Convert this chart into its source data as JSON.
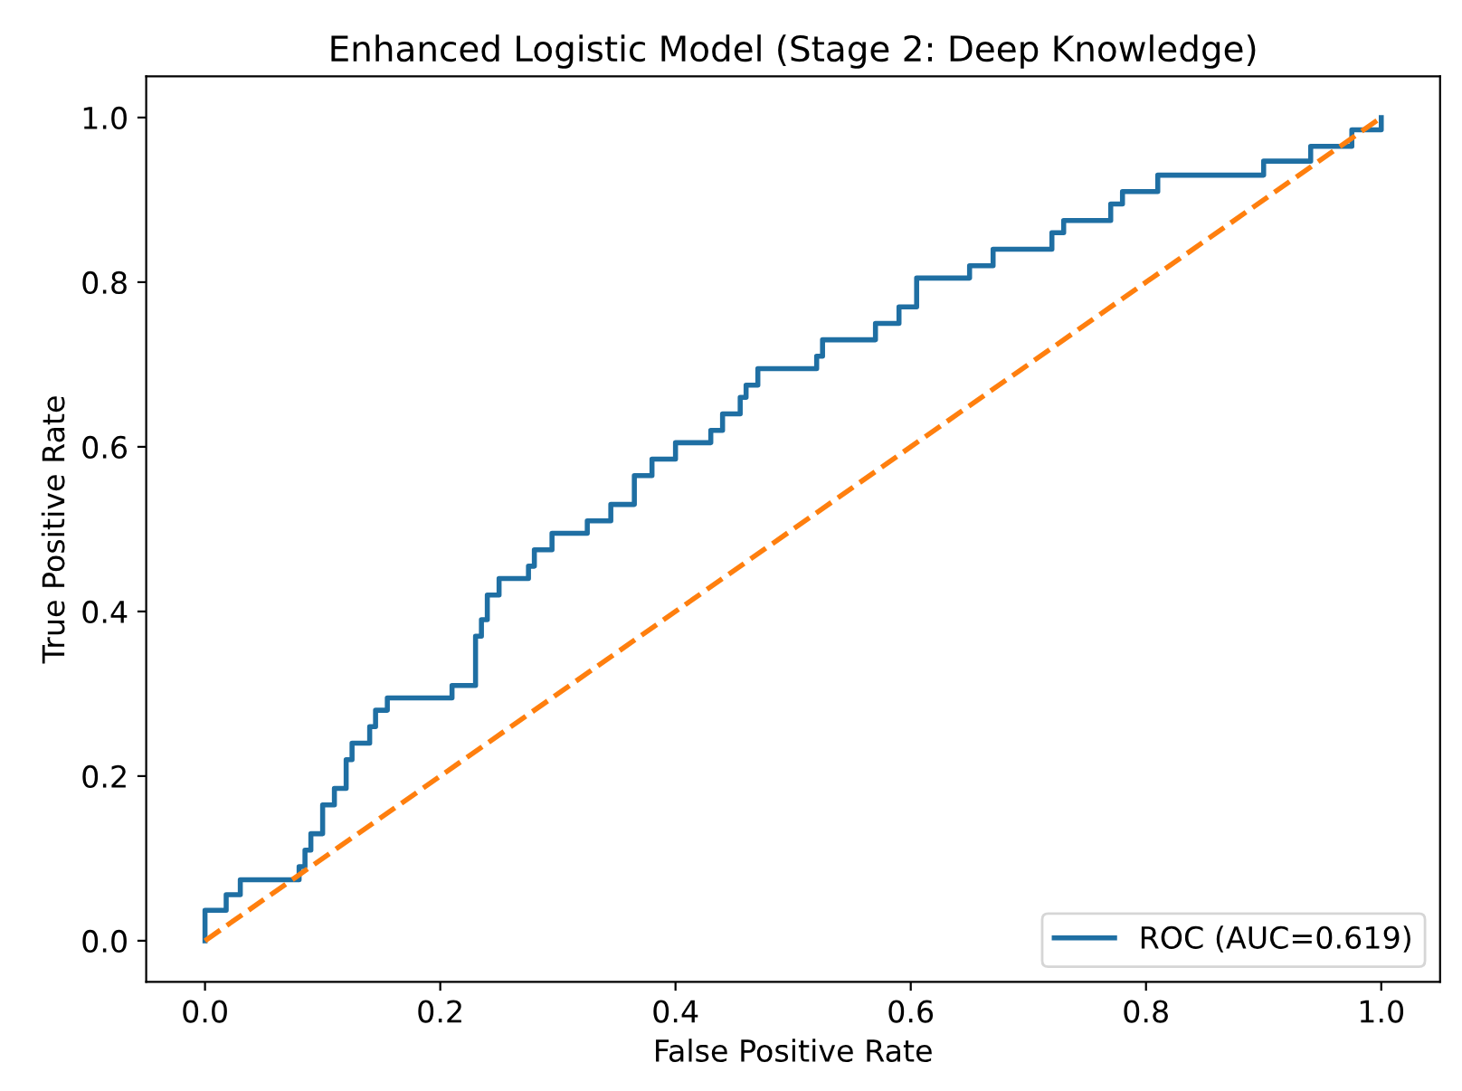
{
  "chart_data": {
    "type": "line",
    "title": "Enhanced Logistic Model (Stage 2: Deep Knowledge)",
    "xlabel": "False Positive Rate",
    "ylabel": "True Positive Rate",
    "xlim": [
      -0.05,
      1.05
    ],
    "ylim": [
      -0.05,
      1.05
    ],
    "xticks": [
      {
        "value": 0,
        "label": "0.0"
      },
      0.2,
      0.4,
      0.6,
      0.8,
      {
        "value": 1,
        "label": "1.0"
      }
    ],
    "yticks": [
      {
        "value": 0,
        "label": "0.0"
      },
      0.2,
      0.4,
      0.6,
      0.8,
      {
        "value": 1,
        "label": "1.0"
      }
    ],
    "grid": false,
    "legend": "bottom right",
    "series": [
      {
        "name": "ROC (AUC=0.619)",
        "type": "step",
        "color": "#1f6fa3",
        "line_style": "solid",
        "x": [
          0,
          0,
          0.018,
          0.03,
          0.08,
          0.085,
          0.09,
          0.1,
          0.11,
          0.12,
          0.125,
          0.14,
          0.145,
          0.155,
          0.21,
          0.23,
          0.235,
          0.24,
          0.25,
          0.275,
          0.28,
          0.295,
          0.325,
          0.345,
          0.365,
          0.38,
          0.4,
          0.43,
          0.44,
          0.455,
          0.46,
          0.47,
          0.52,
          0.525,
          0.57,
          0.59,
          0.605,
          0.65,
          0.67,
          0.72,
          0.73,
          0.77,
          0.78,
          0.81,
          0.9,
          0.94,
          0.975,
          1.0
        ],
        "values": [
          0,
          0.037,
          0.056,
          0.074,
          0.09,
          0.11,
          0.13,
          0.165,
          0.185,
          0.22,
          0.24,
          0.26,
          0.28,
          0.295,
          0.31,
          0.37,
          0.39,
          0.42,
          0.44,
          0.455,
          0.475,
          0.495,
          0.51,
          0.53,
          0.565,
          0.585,
          0.605,
          0.62,
          0.64,
          0.66,
          0.675,
          0.695,
          0.71,
          0.73,
          0.75,
          0.77,
          0.805,
          0.82,
          0.84,
          0.86,
          0.875,
          0.895,
          0.91,
          0.93,
          0.947,
          0.965,
          0.985,
          1.0
        ]
      },
      {
        "color": "#ff7f0e",
        "line_style": "dashed",
        "x": [
          0,
          1
        ],
        "values": [
          0,
          1
        ]
      }
    ]
  }
}
